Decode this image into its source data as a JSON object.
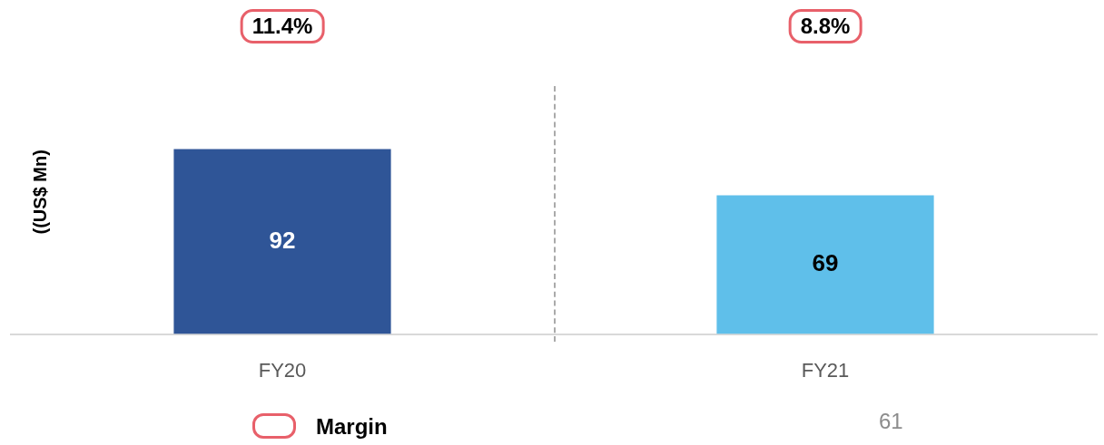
{
  "chart_data": {
    "type": "bar",
    "ylabel": "((US$ Mn)",
    "categories": [
      "FY20",
      "FY21"
    ],
    "series": [
      {
        "values": [
          92,
          69
        ],
        "colors": [
          "#2f5597",
          "#5fbfea"
        ]
      }
    ],
    "data_labels": true,
    "grid": false,
    "annotations": [
      "11.4%",
      "8.8%",
      "Margin",
      "61"
    ]
  }
}
